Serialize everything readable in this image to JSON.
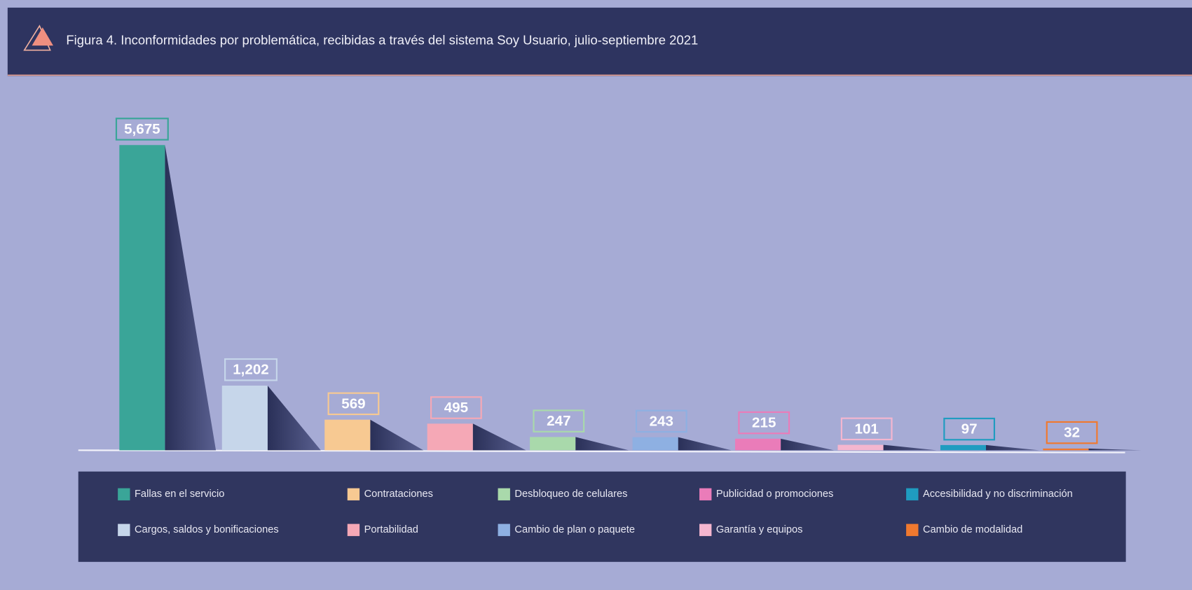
{
  "chart_data": {
    "type": "bar",
    "title": "Figura 4. Inconformidades por problemática, recibidas a través del sistema Soy Usuario, julio-septiembre 2021",
    "categories": [
      "Fallas en el servicio",
      "Cargos, saldos y bonificaciones",
      "Contrataciones",
      "Portabilidad",
      "Desbloqueo de celulares",
      "Cambio de plan o paquete",
      "Publicidad o promociones",
      "Garantía y equipos",
      "Accesibilidad y no discriminación",
      "Cambio de modalidad"
    ],
    "values": [
      5675,
      1202,
      569,
      495,
      247,
      243,
      215,
      101,
      97,
      32
    ],
    "value_labels": [
      "5,675",
      "1,202",
      "569",
      "495",
      "247",
      "243",
      "215",
      "101",
      "97",
      "32"
    ],
    "colors": [
      "#3aa598",
      "#c6d6ea",
      "#f7c992",
      "#f5a8b6",
      "#a9d9ab",
      "#8eb0e2",
      "#ea7cb9",
      "#f4b6cf",
      "#1f9cc0",
      "#f0792f"
    ]
  }
}
